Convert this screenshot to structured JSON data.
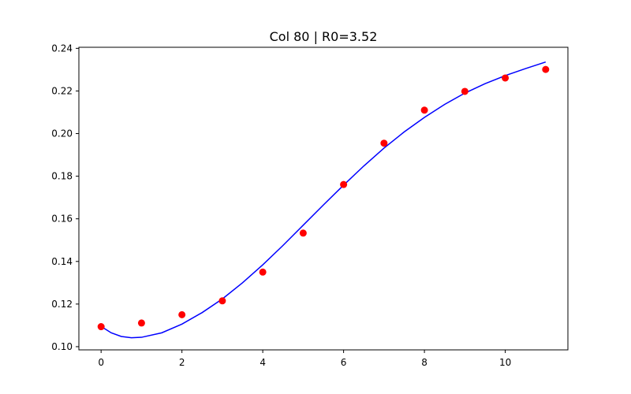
{
  "chart_data": {
    "type": "scatter",
    "title": "Col 80 | R0=3.52",
    "xlabel": "",
    "ylabel": "",
    "xlim": [
      -0.55,
      11.55
    ],
    "ylim": [
      0.0985,
      0.2405
    ],
    "xticks": [
      0,
      2,
      4,
      6,
      8,
      10
    ],
    "xtick_labels": [
      "0",
      "2",
      "4",
      "6",
      "8",
      "10"
    ],
    "yticks": [
      0.1,
      0.12,
      0.14,
      0.16,
      0.18,
      0.2,
      0.22,
      0.24
    ],
    "ytick_labels": [
      "0.10",
      "0.12",
      "0.14",
      "0.16",
      "0.18",
      "0.20",
      "0.22",
      "0.24"
    ],
    "grid": false,
    "series": [
      {
        "kind": "points",
        "color": "#ff0000",
        "x": [
          0,
          1,
          2,
          3,
          4,
          5,
          6,
          7,
          8,
          9,
          10,
          11
        ],
        "y": [
          0.1094,
          0.1111,
          0.115,
          0.1215,
          0.135,
          0.1533,
          0.1761,
          0.1955,
          0.211,
          0.2198,
          0.2261,
          0.2301
        ]
      },
      {
        "kind": "line",
        "color": "#0000ff",
        "x": [
          0,
          0.25,
          0.5,
          0.75,
          1,
          1.5,
          2,
          2.5,
          3,
          3.5,
          4,
          4.5,
          5,
          5.5,
          6,
          6.5,
          7,
          7.5,
          8,
          8.5,
          9,
          9.5,
          10,
          10.5,
          11
        ],
        "y": [
          0.1095,
          0.1065,
          0.1048,
          0.1042,
          0.1044,
          0.1065,
          0.1106,
          0.116,
          0.1224,
          0.13,
          0.1384,
          0.1475,
          0.157,
          0.1665,
          0.1758,
          0.1848,
          0.1932,
          0.2008,
          0.2076,
          0.2137,
          0.219,
          0.2234,
          0.2272,
          0.2305,
          0.2336
        ]
      }
    ]
  }
}
